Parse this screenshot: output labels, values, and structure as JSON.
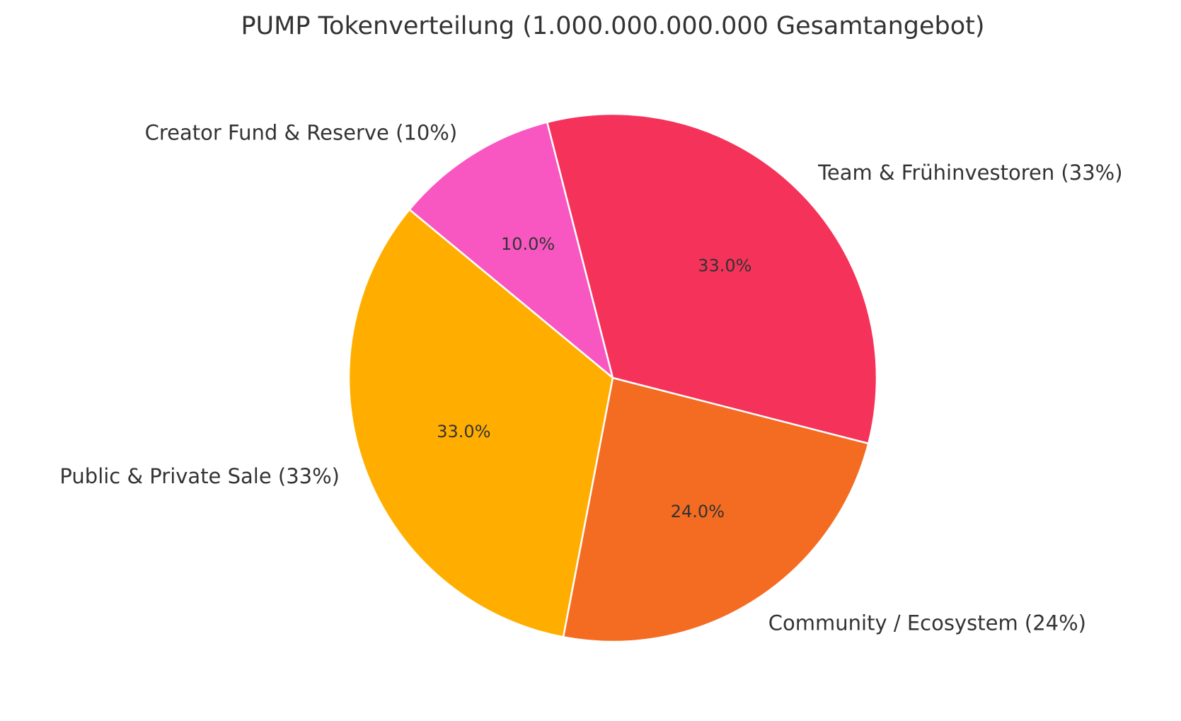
{
  "chart_data": {
    "type": "pie",
    "title": "PUMP Tokenverteilung (1.000.000.000.000 Gesamtangebot)",
    "start_angle_deg": 104.4,
    "direction": "counterclockwise",
    "slices": [
      {
        "label": "Creator Fund & Reserve (10%)",
        "value": 10,
        "percent_label": "10.0%",
        "color": "#F857C1"
      },
      {
        "label": "Public & Private Sale (33%)",
        "value": 33,
        "percent_label": "33.0%",
        "color": "#FFAE00"
      },
      {
        "label": "Community / Ecosystem (24%)",
        "value": 24,
        "percent_label": "24.0%",
        "color": "#F46B22"
      },
      {
        "label": "Team & Frühinvestoren (33%)",
        "value": 33,
        "percent_label": "33.0%",
        "color": "#F5325A"
      }
    ]
  }
}
